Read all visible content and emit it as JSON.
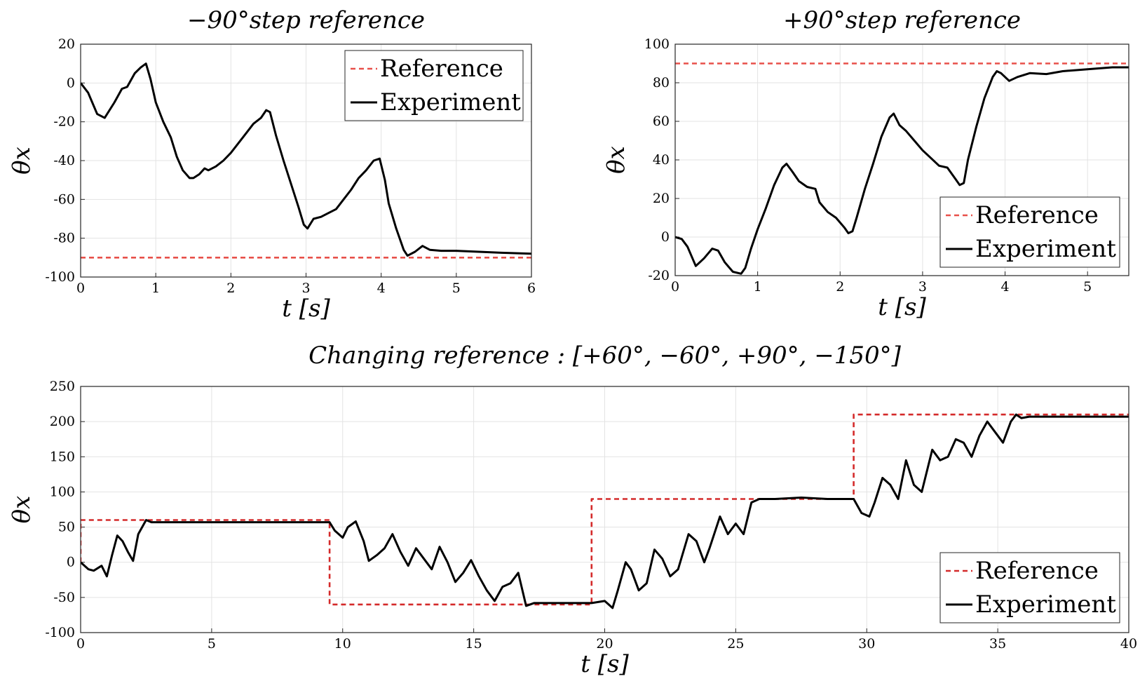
{
  "chart_data": [
    {
      "type": "line",
      "title": "−90°step reference",
      "xlabel": "t [s]",
      "ylabel": "θx",
      "xlim": [
        0,
        6
      ],
      "ylim": [
        -100,
        20
      ],
      "xticks": [
        "0",
        "1",
        "2",
        "3",
        "4",
        "5",
        "6"
      ],
      "yticks": [
        "20",
        "0",
        "-20",
        "-40",
        "-60",
        "-80",
        "-100"
      ],
      "grid": true,
      "legend": "top-right",
      "series": [
        {
          "name": "Reference",
          "color": "#e8504a",
          "style": "dashed",
          "x": [
            0,
            6
          ],
          "y": [
            -90,
            -90
          ]
        },
        {
          "name": "Experiment",
          "color": "#000000",
          "style": "solid",
          "x": [
            0,
            0.1,
            0.22,
            0.32,
            0.45,
            0.55,
            0.62,
            0.72,
            0.8,
            0.87,
            0.93,
            1.0,
            1.1,
            1.2,
            1.28,
            1.36,
            1.45,
            1.5,
            1.58,
            1.65,
            1.7,
            1.8,
            1.9,
            2.0,
            2.1,
            2.2,
            2.3,
            2.4,
            2.47,
            2.52,
            2.6,
            2.7,
            2.8,
            2.9,
            2.97,
            3.02,
            3.1,
            3.2,
            3.3,
            3.4,
            3.5,
            3.6,
            3.7,
            3.8,
            3.9,
            3.98,
            4.05,
            4.1,
            4.2,
            4.3,
            4.35,
            4.45,
            4.55,
            4.65,
            4.8,
            5.0,
            5.3,
            5.6,
            6.0
          ],
          "y": [
            0,
            -5,
            -16,
            -18,
            -10,
            -3,
            -2,
            5,
            8,
            10,
            2,
            -10,
            -20,
            -28,
            -38,
            -45,
            -49,
            -49,
            -47,
            -44,
            -45,
            -43,
            -40,
            -36,
            -31,
            -26,
            -21,
            -18,
            -14,
            -15,
            -27,
            -40,
            -52,
            -64,
            -73,
            -75,
            -70,
            -69,
            -67,
            -65,
            -60,
            -55,
            -49,
            -45,
            -40,
            -39,
            -50,
            -62,
            -75,
            -86,
            -89,
            -87,
            -84,
            -86,
            -86.5,
            -86.5,
            -87,
            -87.5,
            -88
          ]
        }
      ]
    },
    {
      "type": "line",
      "title": "+90°step reference",
      "xlabel": "t [s]",
      "ylabel": "θx",
      "xlim": [
        0,
        5.5
      ],
      "ylim": [
        -20,
        100
      ],
      "xticks": [
        "0",
        "1",
        "2",
        "3",
        "4",
        "5"
      ],
      "yticks": [
        "100",
        "80",
        "60",
        "40",
        "20",
        "0",
        "-20"
      ],
      "grid": true,
      "legend": "bottom-right",
      "series": [
        {
          "name": "Reference",
          "color": "#e8504a",
          "style": "dashed",
          "x": [
            0,
            5.5
          ],
          "y": [
            90,
            90
          ]
        },
        {
          "name": "Experiment",
          "color": "#000000",
          "style": "solid",
          "x": [
            0,
            0.08,
            0.15,
            0.25,
            0.35,
            0.45,
            0.52,
            0.6,
            0.7,
            0.8,
            0.85,
            0.92,
            1.0,
            1.1,
            1.2,
            1.3,
            1.35,
            1.42,
            1.5,
            1.6,
            1.7,
            1.75,
            1.85,
            1.95,
            2.05,
            2.1,
            2.15,
            2.2,
            2.3,
            2.4,
            2.5,
            2.6,
            2.65,
            2.72,
            2.8,
            2.9,
            3.0,
            3.1,
            3.2,
            3.3,
            3.4,
            3.45,
            3.5,
            3.55,
            3.65,
            3.75,
            3.85,
            3.9,
            3.95,
            4.05,
            4.15,
            4.3,
            4.5,
            4.7,
            5.0,
            5.3,
            5.5
          ],
          "y": [
            0,
            -1,
            -5,
            -15,
            -11,
            -6,
            -7,
            -13,
            -18,
            -19,
            -16,
            -6,
            4,
            15,
            27,
            36,
            38,
            34,
            29,
            26,
            25,
            18,
            13,
            10,
            5,
            2,
            3,
            10,
            25,
            38,
            52,
            62,
            64,
            58,
            55,
            50,
            45,
            41,
            37,
            36,
            30,
            27,
            28,
            40,
            57,
            72,
            83,
            86,
            85,
            81,
            83,
            85,
            84.5,
            86,
            87,
            88,
            88
          ]
        }
      ]
    },
    {
      "type": "line",
      "title": "Changing reference : [+60°, −60°, +90°, −150°]",
      "xlabel": "t [s]",
      "ylabel": "θx",
      "xlim": [
        0,
        40
      ],
      "ylim": [
        -100,
        250
      ],
      "xticks": [
        "0",
        "5",
        "10",
        "15",
        "20",
        "25",
        "30",
        "35",
        "40"
      ],
      "yticks": [
        "250",
        "200",
        "150",
        "100",
        "50",
        "0",
        "-50",
        "-100"
      ],
      "grid": true,
      "legend": "bottom-right",
      "series": [
        {
          "name": "Reference",
          "color": "#d42a2a",
          "style": "dashed",
          "x": [
            0,
            0,
            9.5,
            9.5,
            19.5,
            19.5,
            29.5,
            29.5,
            40
          ],
          "y": [
            0,
            60,
            60,
            -60,
            -60,
            90,
            90,
            210,
            210
          ]
        },
        {
          "name": "Experiment",
          "color": "#000000",
          "style": "solid",
          "x": [
            0,
            0.3,
            0.5,
            0.8,
            1.0,
            1.2,
            1.4,
            1.6,
            1.8,
            2.0,
            2.2,
            2.5,
            2.7,
            3.5,
            6,
            9.5,
            9.7,
            10.0,
            10.2,
            10.5,
            10.8,
            11.0,
            11.3,
            11.6,
            11.9,
            12.2,
            12.5,
            12.8,
            13.1,
            13.4,
            13.7,
            14.0,
            14.3,
            14.6,
            14.9,
            15.2,
            15.5,
            15.8,
            16.1,
            16.4,
            16.7,
            17.0,
            17.3,
            17.6,
            19.5,
            20.0,
            20.3,
            20.5,
            20.8,
            21.0,
            21.3,
            21.6,
            21.9,
            22.2,
            22.5,
            22.8,
            23.2,
            23.5,
            23.8,
            24.0,
            24.4,
            24.7,
            25.0,
            25.3,
            25.6,
            25.9,
            26.5,
            27.5,
            28.5,
            29.5,
            29.8,
            30.1,
            30.3,
            30.6,
            30.9,
            31.2,
            31.5,
            31.8,
            32.1,
            32.5,
            32.8,
            33.1,
            33.4,
            33.7,
            34.0,
            34.3,
            34.6,
            34.9,
            35.2,
            35.5,
            35.7,
            35.9,
            36.2,
            37,
            38,
            40
          ],
          "y": [
            0,
            -10,
            -12,
            -5,
            -20,
            10,
            38,
            30,
            15,
            2,
            40,
            60,
            57,
            57,
            57,
            57,
            45,
            35,
            50,
            58,
            30,
            2,
            10,
            20,
            40,
            15,
            -5,
            20,
            5,
            -10,
            22,
            0,
            -28,
            -15,
            3,
            -20,
            -40,
            -55,
            -35,
            -30,
            -15,
            -62,
            -58,
            -58,
            -58,
            -55,
            -65,
            -40,
            0,
            -10,
            -40,
            -30,
            18,
            5,
            -20,
            -10,
            40,
            30,
            0,
            20,
            65,
            40,
            55,
            40,
            85,
            90,
            90,
            92,
            90,
            90,
            70,
            65,
            85,
            120,
            110,
            90,
            145,
            110,
            100,
            160,
            145,
            150,
            175,
            170,
            150,
            180,
            200,
            185,
            170,
            200,
            210,
            205,
            207,
            207,
            207,
            207
          ]
        }
      ]
    }
  ]
}
